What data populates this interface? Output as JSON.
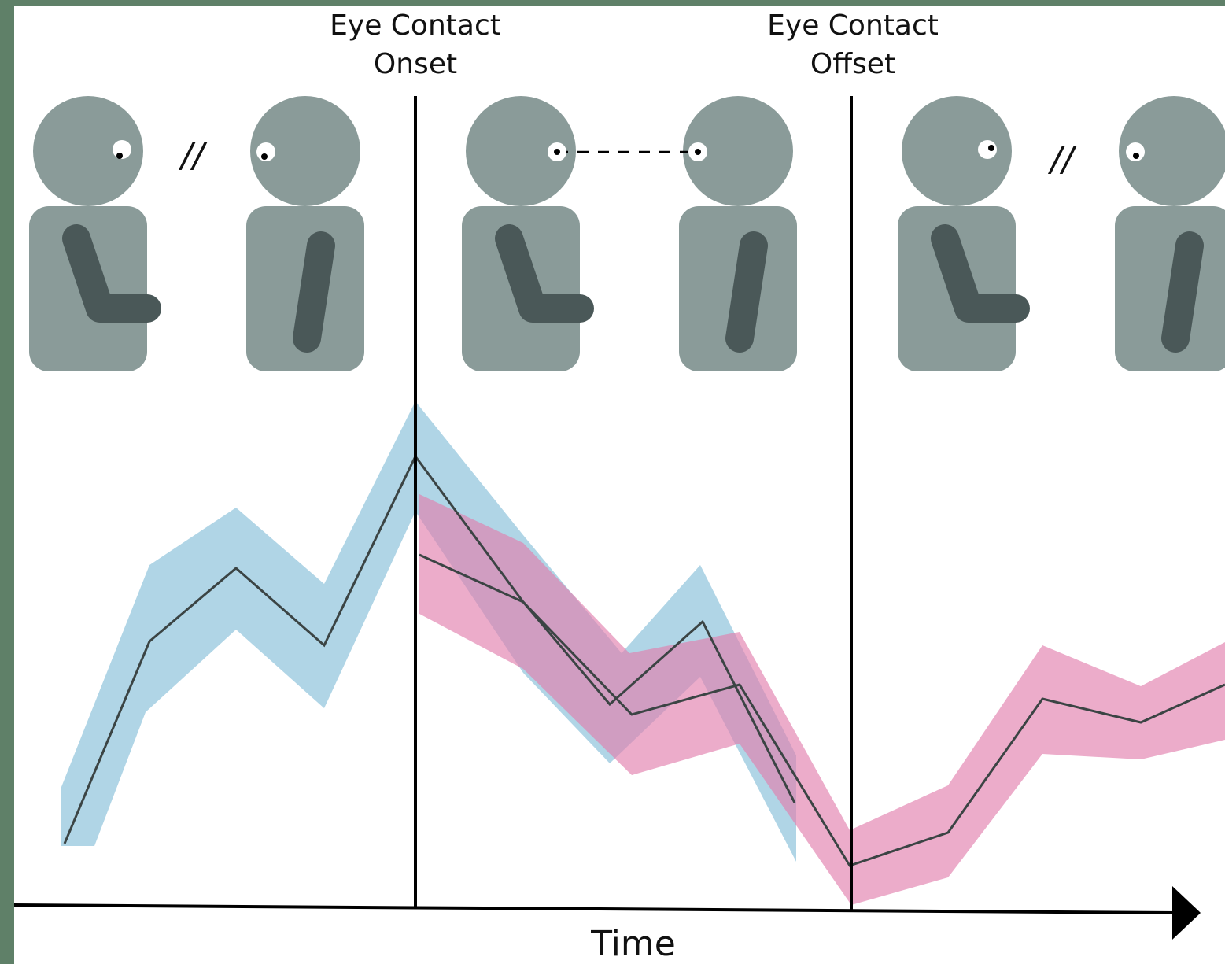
{
  "annotations": [
    {
      "lines": [
        "Eye Contact",
        "Onset"
      ]
    },
    {
      "lines": [
        "Eye Contact",
        "Offset"
      ]
    }
  ],
  "separators": [
    "//",
    "//"
  ],
  "axis_label": "Time"
}
